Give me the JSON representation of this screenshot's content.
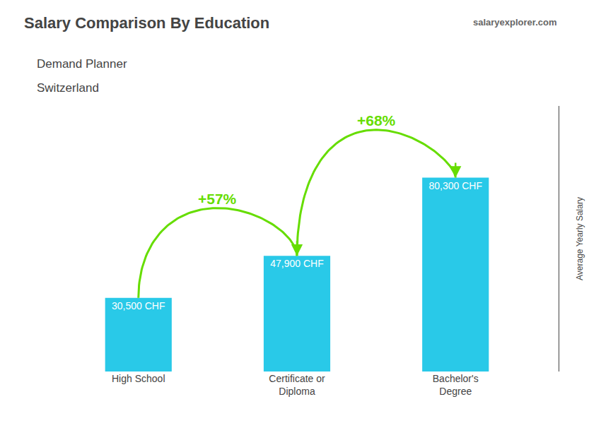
{
  "chart_data": {
    "type": "bar",
    "title": "Salary Comparison By Education",
    "subtitle": [
      "Demand Planner",
      "Switzerland"
    ],
    "source": "salaryexplorer.com",
    "ylabel": "Average Yearly Salary",
    "categories": [
      "High School",
      "Certificate or\nDiploma",
      "Bachelor's\nDegree"
    ],
    "values": [
      30500,
      47900,
      80300
    ],
    "value_labels": [
      "30,500 CHF",
      "47,900 CHF",
      "80,300 CHF"
    ],
    "data_labels": true,
    "color": "#29c9e8",
    "annotations": [
      {
        "text": "+57%",
        "color": "#66dd00"
      },
      {
        "text": "+68%",
        "color": "#66dd00"
      }
    ],
    "ylim": [
      0,
      110000
    ],
    "grid": false,
    "tick_labels": "x"
  }
}
